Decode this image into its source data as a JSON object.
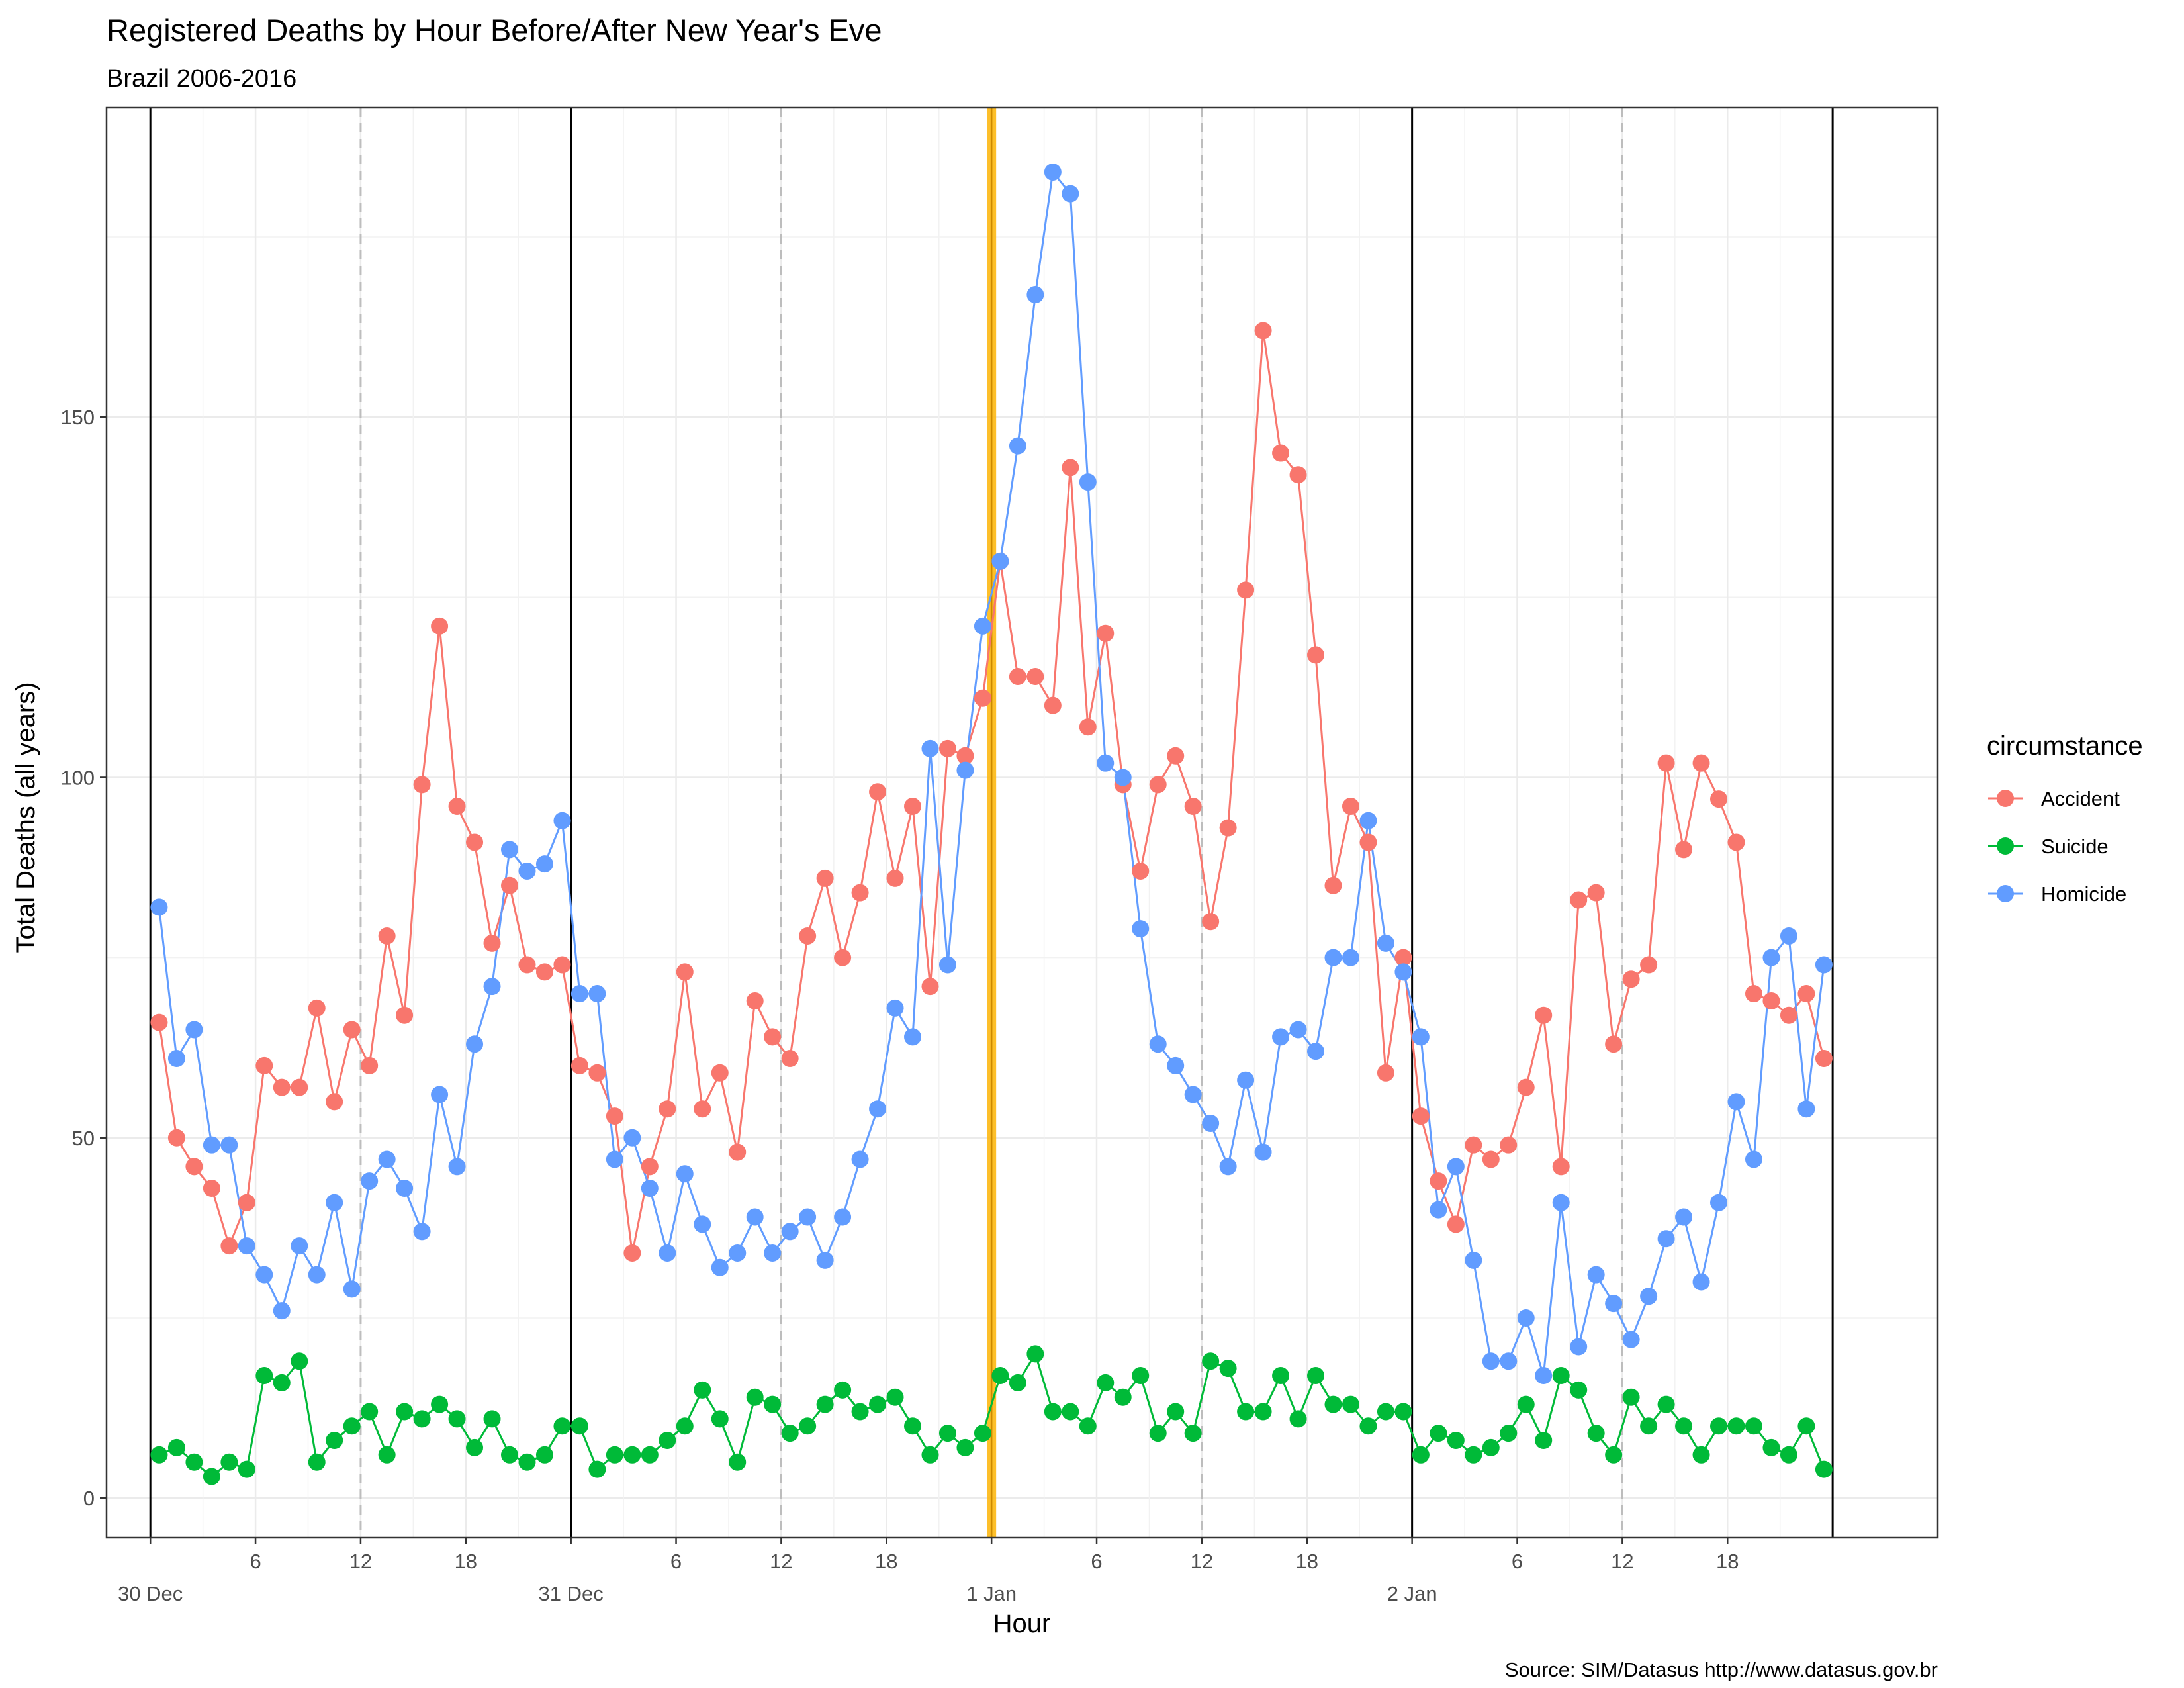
{
  "chart_data": {
    "type": "line",
    "title": "Registered Deaths by Hour Before/After New Year's Eve",
    "subtitle": "Brazil 2006-2016",
    "xlabel": "Hour",
    "ylabel": "Total Deaths (all years)",
    "caption": "Source: SIM/Datasus http://www.datasus.gov.br",
    "legend_title": "circumstance",
    "legend_position": "right",
    "grid": true,
    "xlim": [
      -2.5,
      102
    ],
    "ylim": [
      -5.5,
      193
    ],
    "y_ticks": [
      0,
      50,
      100,
      150
    ],
    "x_ticks": [
      {
        "x": 6,
        "label": "6"
      },
      {
        "x": 12,
        "label": "12"
      },
      {
        "x": 18,
        "label": "18"
      },
      {
        "x": 30,
        "label": "6"
      },
      {
        "x": 36,
        "label": "12"
      },
      {
        "x": 42,
        "label": "18"
      },
      {
        "x": 54,
        "label": "6"
      },
      {
        "x": 60,
        "label": "12"
      },
      {
        "x": 66,
        "label": "18"
      },
      {
        "x": 78,
        "label": "6"
      },
      {
        "x": 84,
        "label": "12"
      },
      {
        "x": 90,
        "label": "18"
      }
    ],
    "day_labels": [
      {
        "x": 0,
        "label": "30 Dec"
      },
      {
        "x": 24,
        "label": "31 Dec"
      },
      {
        "x": 48,
        "label": "1 Jan"
      },
      {
        "x": 72,
        "label": "2 Jan"
      }
    ],
    "day_lines": [
      0,
      24,
      48,
      72,
      96
    ],
    "noon_lines": [
      12,
      36,
      60,
      84
    ],
    "midnight_highlight": 48,
    "series": [
      {
        "name": "Accident",
        "color": "#F8766D",
        "values": [
          66,
          50,
          46,
          43,
          35,
          41,
          60,
          57,
          57,
          68,
          55,
          65,
          60,
          78,
          67,
          99,
          121,
          96,
          91,
          77,
          85,
          74,
          73,
          74,
          60,
          59,
          53,
          34,
          46,
          54,
          73,
          54,
          59,
          48,
          69,
          64,
          61,
          78,
          86,
          75,
          84,
          98,
          86,
          96,
          71,
          104,
          103,
          111,
          130,
          114,
          114,
          110,
          143,
          107,
          120,
          99,
          87,
          99,
          103,
          96,
          80,
          93,
          126,
          162,
          145,
          142,
          117,
          85,
          96,
          91,
          59,
          75,
          53,
          44,
          38,
          49,
          47,
          49,
          57,
          67,
          46,
          83,
          84,
          63,
          72,
          74,
          102,
          90,
          102,
          97,
          91,
          70,
          69,
          67,
          70,
          61
        ]
      },
      {
        "name": "Suicide",
        "color": "#00BA38",
        "values": [
          6,
          7,
          5,
          3,
          5,
          4,
          17,
          16,
          19,
          5,
          8,
          10,
          12,
          6,
          12,
          11,
          13,
          11,
          7,
          11,
          6,
          5,
          6,
          10,
          10,
          4,
          6,
          6,
          6,
          8,
          10,
          15,
          11,
          5,
          14,
          13,
          9,
          10,
          13,
          15,
          12,
          13,
          14,
          10,
          6,
          9,
          7,
          9,
          17,
          16,
          20,
          12,
          12,
          10,
          16,
          14,
          17,
          9,
          12,
          9,
          19,
          18,
          12,
          12,
          17,
          11,
          17,
          13,
          13,
          10,
          12,
          12,
          6,
          9,
          8,
          6,
          7,
          9,
          13,
          8,
          17,
          15,
          9,
          6,
          14,
          10,
          13,
          10,
          6,
          10,
          10,
          10,
          7,
          6,
          10,
          4
        ]
      },
      {
        "name": "Homicide",
        "color": "#619CFF",
        "values": [
          82,
          61,
          65,
          49,
          49,
          35,
          31,
          26,
          35,
          31,
          41,
          29,
          44,
          47,
          43,
          37,
          56,
          46,
          63,
          71,
          90,
          87,
          88,
          94,
          70,
          70,
          47,
          50,
          43,
          34,
          45,
          38,
          32,
          34,
          39,
          34,
          37,
          39,
          33,
          39,
          47,
          54,
          68,
          64,
          104,
          74,
          101,
          121,
          130,
          146,
          167,
          184,
          181,
          141,
          102,
          100,
          79,
          63,
          60,
          56,
          52,
          46,
          58,
          48,
          64,
          65,
          62,
          75,
          75,
          94,
          77,
          73,
          64,
          40,
          46,
          33,
          19,
          19,
          25,
          17,
          41,
          21,
          31,
          27,
          22,
          28,
          36,
          39,
          30,
          41,
          55,
          47,
          75,
          78,
          54,
          74
        ]
      }
    ]
  }
}
